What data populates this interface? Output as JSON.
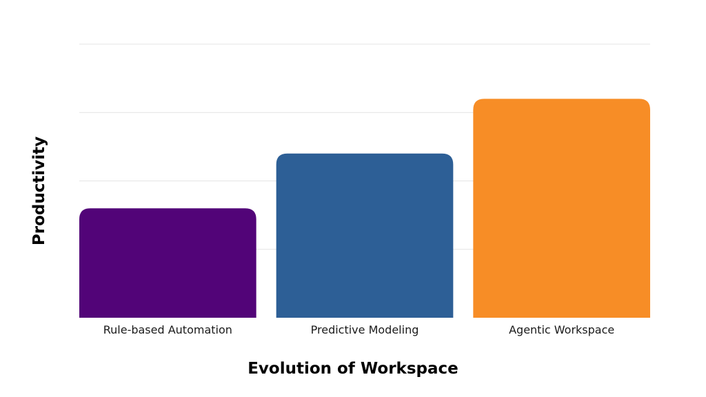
{
  "chart_data": {
    "type": "bar",
    "categories": [
      "Rule-based Automation",
      "Predictive Modeling",
      "Agentic Workspace"
    ],
    "values": [
      1.6,
      2.4,
      3.2
    ],
    "colors": [
      "#520478",
      "#2d5f96",
      "#f78d26"
    ],
    "title": "",
    "xlabel": "Evolution of Workspace",
    "ylabel": "Productivity",
    "ylim": [
      0,
      4
    ],
    "grid": true,
    "legend": "none",
    "y_tick_labels_shown": false
  }
}
